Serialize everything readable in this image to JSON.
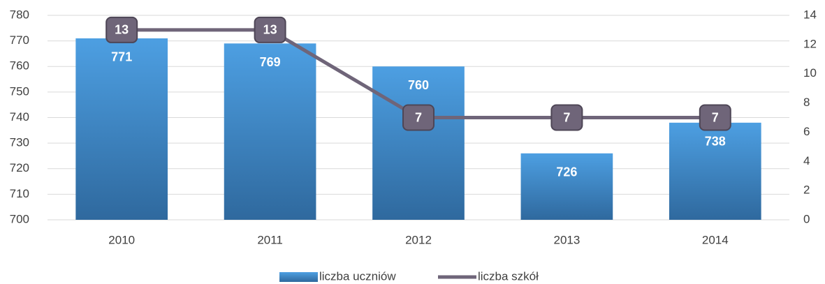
{
  "chart_data": {
    "type": "bar",
    "categories": [
      "2010",
      "2011",
      "2012",
      "2013",
      "2014"
    ],
    "series": [
      {
        "name": "liczba uczniów",
        "type": "bar",
        "color": "#3f85c8",
        "values": [
          771,
          769,
          760,
          726,
          738
        ]
      },
      {
        "name": "liczba szkół",
        "type": "line",
        "axis": "y2",
        "color": "#6f6579",
        "values": [
          13,
          13,
          7,
          7,
          7
        ]
      }
    ],
    "ylim": [
      700,
      780
    ],
    "yticks": [
      700,
      710,
      720,
      730,
      740,
      750,
      760,
      770,
      780
    ],
    "y2lim": [
      0,
      14
    ],
    "y2ticks": [
      0,
      2,
      4,
      6,
      8,
      10,
      12,
      14
    ],
    "grid": true,
    "legend": "bottom"
  }
}
